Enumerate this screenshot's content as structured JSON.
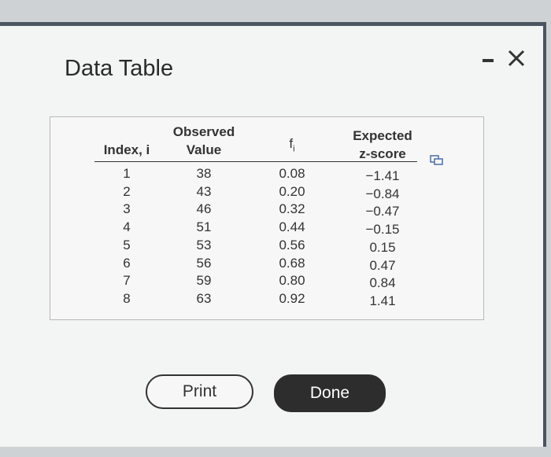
{
  "header": {
    "title": "Data Table"
  },
  "table": {
    "headers": [
      "Index, i",
      "Observed Value",
      {
        "text": "f",
        "subscript": "i"
      },
      "Expected z-score"
    ],
    "rows": [
      [
        1,
        38,
        "0.08",
        "−1.41"
      ],
      [
        2,
        43,
        "0.20",
        "−0.84"
      ],
      [
        3,
        46,
        "0.32",
        "−0.47"
      ],
      [
        4,
        51,
        "0.44",
        "−0.15"
      ],
      [
        5,
        53,
        "0.56",
        "0.15"
      ],
      [
        6,
        56,
        "0.68",
        "0.47"
      ],
      [
        7,
        59,
        "0.80",
        "0.84"
      ],
      [
        8,
        63,
        "0.92",
        "1.41"
      ]
    ]
  },
  "buttons": [
    "Print",
    "Done"
  ]
}
